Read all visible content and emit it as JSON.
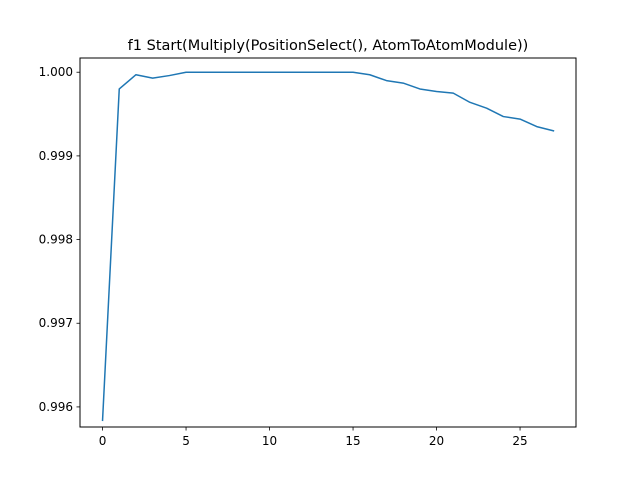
{
  "chart_data": {
    "type": "line",
    "title": "f1 Start(Multiply(PositionSelect(), AtomToAtomModule))",
    "xlabel": "",
    "ylabel": "",
    "xlim": [
      -1.35,
      28.35
    ],
    "ylim": [
      0.99576,
      1.00017
    ],
    "xticks": [
      0,
      5,
      10,
      15,
      20,
      25
    ],
    "xtick_labels": [
      "0",
      "5",
      "10",
      "15",
      "20",
      "25"
    ],
    "yticks": [
      0.996,
      0.997,
      0.998,
      0.999,
      1.0
    ],
    "ytick_labels": [
      "0.996",
      "0.997",
      "0.998",
      "0.999",
      "1.000"
    ],
    "grid": false,
    "legend": "none",
    "series": [
      {
        "color": "#1f77b4",
        "x": [
          0,
          1,
          2,
          3,
          4,
          5,
          6,
          7,
          8,
          9,
          10,
          11,
          12,
          13,
          14,
          15,
          16,
          17,
          18,
          19,
          20,
          21,
          22,
          23,
          24,
          25,
          26,
          27
        ],
        "values": [
          0.99584,
          0.9998,
          0.99997,
          0.99993,
          0.99996,
          1.0,
          1.0,
          1.0,
          1.0,
          1.0,
          1.0,
          1.0,
          1.0,
          1.0,
          1.0,
          1.0,
          0.99997,
          0.9999,
          0.99987,
          0.9998,
          0.99977,
          0.99975,
          0.99964,
          0.99957,
          0.99947,
          0.99944,
          0.99935,
          0.9993
        ]
      }
    ]
  }
}
